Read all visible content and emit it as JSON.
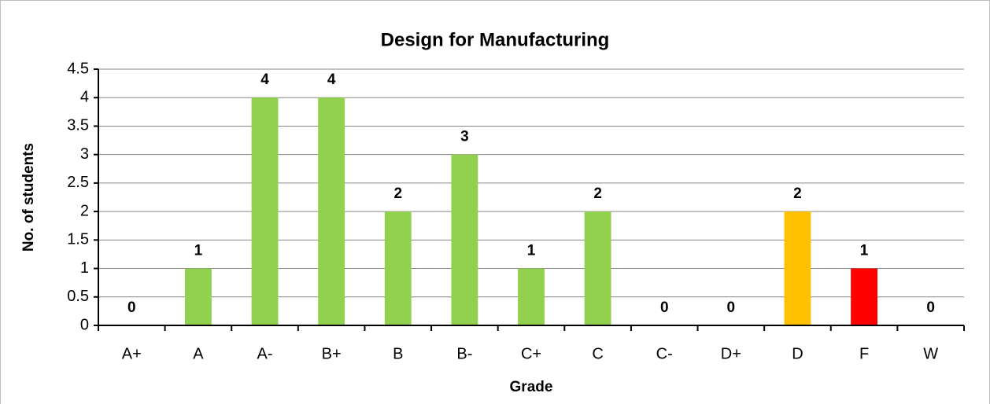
{
  "chart_data": {
    "type": "bar",
    "title": "Design for Manufacturing",
    "x_label": "Grade",
    "y_label": "No. of students",
    "categories": [
      "A+",
      "A",
      "A-",
      "B+",
      "B",
      "B-",
      "C+",
      "C",
      "C-",
      "D+",
      "D",
      "F",
      "W"
    ],
    "values": [
      0,
      1,
      4,
      4,
      2,
      3,
      1,
      2,
      0,
      0,
      2,
      1,
      0
    ],
    "colors": [
      "#92d050",
      "#92d050",
      "#92d050",
      "#92d050",
      "#92d050",
      "#92d050",
      "#92d050",
      "#92d050",
      "#92d050",
      "#92d050",
      "#ffc000",
      "#ff0000",
      "#92d050"
    ],
    "ylim": [
      0,
      4.5
    ],
    "yticks": [
      0,
      0.5,
      1,
      1.5,
      2,
      2.5,
      3,
      3.5,
      4,
      4.5
    ],
    "grid": true
  }
}
